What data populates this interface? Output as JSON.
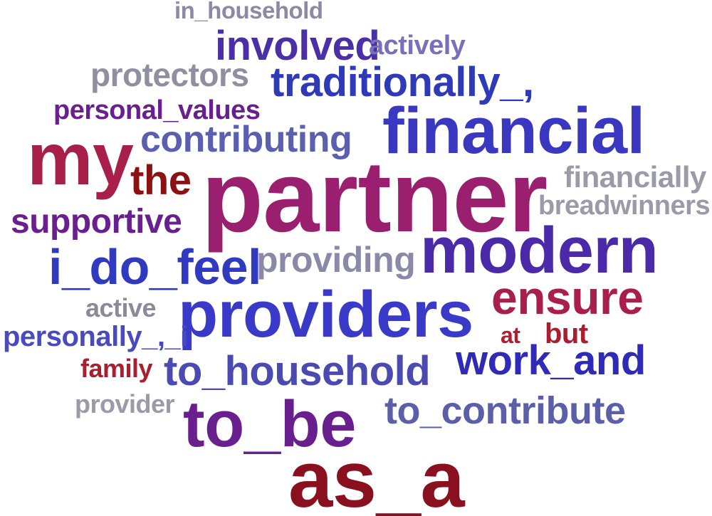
{
  "words": [
    {
      "text": "in_household",
      "color": "#8a8aa6"
    },
    {
      "text": "involved",
      "color": "#4a2fa8"
    },
    {
      "text": "actively",
      "color": "#7a70b8"
    },
    {
      "text": "protectors",
      "color": "#8f8f9f"
    },
    {
      "text": "traditionally_,",
      "color": "#2f3ab8"
    },
    {
      "text": "personal_values",
      "color": "#6a1f8f"
    },
    {
      "text": "financial",
      "color": "#3a38c0"
    },
    {
      "text": "contributing",
      "color": "#5a5fb0"
    },
    {
      "text": "my",
      "color": "#a81f4a"
    },
    {
      "text": "the",
      "color": "#8a1212"
    },
    {
      "text": "partner",
      "color": "#9a1f6e"
    },
    {
      "text": "financially",
      "color": "#9a9aa8"
    },
    {
      "text": "breadwinners",
      "color": "#9a9aa8"
    },
    {
      "text": "supportive",
      "color": "#6a1f8f"
    },
    {
      "text": "modern",
      "color": "#4a2aa8"
    },
    {
      "text": "i_do_feel",
      "color": "#2f3ac0"
    },
    {
      "text": "providing",
      "color": "#8a8aa8"
    },
    {
      "text": "ensure",
      "color": "#a81f4a"
    },
    {
      "text": "active",
      "color": "#8a8a9a"
    },
    {
      "text": "providers",
      "color": "#3a3ac8"
    },
    {
      "text": "personally_,_i",
      "color": "#4a4ac0"
    },
    {
      "text": "at",
      "color": "#b01f2f"
    },
    {
      "text": "but",
      "color": "#a81f2f"
    },
    {
      "text": "family",
      "color": "#a81f2f"
    },
    {
      "text": "work_and",
      "color": "#2f2ab8"
    },
    {
      "text": "to_household",
      "color": "#4a4ab0"
    },
    {
      "text": "provider",
      "color": "#9a9aa8"
    },
    {
      "text": "to_be",
      "color": "#6a1f8f"
    },
    {
      "text": "to_contribute",
      "color": "#5a5fa8"
    },
    {
      "text": "as_a",
      "color": "#8a0f1f"
    }
  ]
}
